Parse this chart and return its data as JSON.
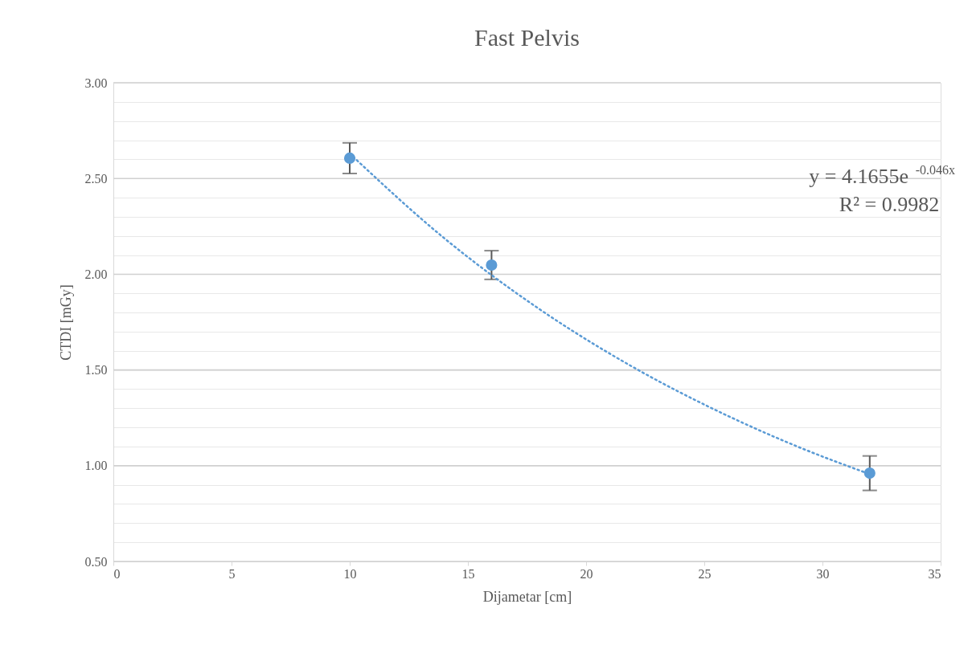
{
  "chart_data": {
    "type": "scatter",
    "title": "Fast Pelvis",
    "xlabel": "Dijametar [cm]",
    "ylabel": "CTDI [mGy]",
    "x": [
      10,
      16,
      32
    ],
    "series": [
      {
        "type": "scatter",
        "color": "#5b9bd5",
        "values": [
          2.606,
          2.048,
          0.961
        ],
        "errors": [
          0.08,
          0.075,
          0.09
        ],
        "marker": "circle"
      },
      {
        "type": "line",
        "color": "#5b9bd5",
        "line_style": "dotted",
        "x": [
          10,
          14,
          18,
          22,
          26,
          29,
          32
        ],
        "values": [
          2.63,
          2.188,
          1.82,
          1.514,
          1.26,
          1.097,
          0.956
        ]
      }
    ],
    "xlim": [
      0,
      35
    ],
    "xticks": [
      0,
      5,
      10,
      15,
      20,
      25,
      30,
      35
    ],
    "ylim": [
      0.5,
      3.0
    ],
    "yticks": [
      {
        "value": 0.5,
        "label": "0.50"
      },
      {
        "value": 0.6,
        "label": null
      },
      {
        "value": 0.7,
        "label": null
      },
      {
        "value": 0.8,
        "label": null
      },
      {
        "value": 0.9,
        "label": null
      },
      {
        "value": 1.0,
        "label": "1.00"
      },
      {
        "value": 1.1,
        "label": null
      },
      {
        "value": 1.2,
        "label": null
      },
      {
        "value": 1.3,
        "label": null
      },
      {
        "value": 1.4,
        "label": null
      },
      {
        "value": 1.5,
        "label": "1.50"
      },
      {
        "value": 1.6,
        "label": null
      },
      {
        "value": 1.7,
        "label": null
      },
      {
        "value": 1.8,
        "label": null
      },
      {
        "value": 1.9,
        "label": null
      },
      {
        "value": 2.0,
        "label": "2.00"
      },
      {
        "value": 2.1,
        "label": null
      },
      {
        "value": 2.2,
        "label": null
      },
      {
        "value": 2.3,
        "label": null
      },
      {
        "value": 2.4,
        "label": null
      },
      {
        "value": 2.5,
        "label": "2.50"
      },
      {
        "value": 2.6,
        "label": null
      },
      {
        "value": 2.7,
        "label": null
      },
      {
        "value": 2.8,
        "label": null
      },
      {
        "value": 2.9,
        "label": null
      },
      {
        "value": 3.0,
        "label": "3.00"
      }
    ],
    "grid": "y",
    "annotations": [
      "y = 4.1655e$^{-0.046x}$",
      "R² = 0.9982"
    ]
  }
}
